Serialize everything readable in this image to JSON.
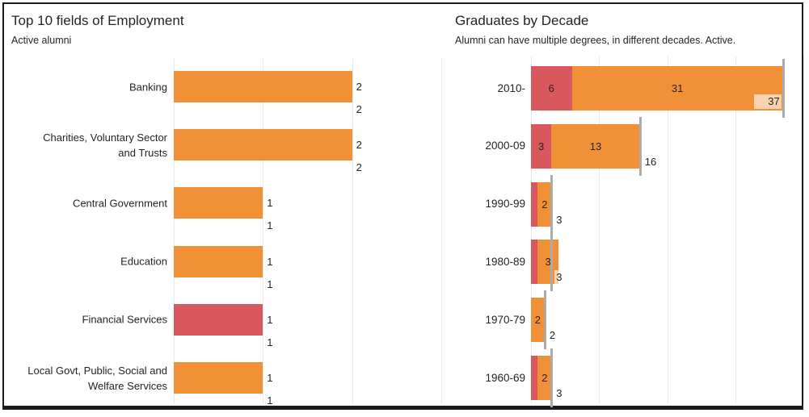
{
  "colors": {
    "orange": "#F09138",
    "red": "#D9585E",
    "total_line": "#ABABAB",
    "gridline": "#E9E9E9",
    "text": "#252423",
    "label_bg": "rgba(255,255,255,0.6)",
    "frame_border": "#1B1B1B"
  },
  "chart_data": [
    {
      "type": "bar",
      "orientation": "horizontal",
      "title": "Top 10 fields of Employment",
      "subtitle": "Active alumni",
      "xlim": [
        0,
        3
      ],
      "gridline_values": [
        0,
        1,
        2,
        3
      ],
      "legend": "none",
      "categories": [
        "Banking",
        "Charities, Voluntary Sector\nand Trusts",
        "Central Government",
        "Education",
        "Financial Services",
        "Local Govt, Public, Social and\nWelfare Services"
      ],
      "values": [
        2,
        2,
        1,
        1,
        1,
        1
      ],
      "totals": [
        2,
        2,
        1,
        1,
        1,
        1
      ],
      "bar_color_keys": [
        "orange",
        "orange",
        "orange",
        "orange",
        "red",
        "orange"
      ]
    },
    {
      "type": "stacked-bar",
      "orientation": "horizontal",
      "title": "Graduates by Decade",
      "subtitle": "Alumni can have multiple degrees, in different decades. Active.",
      "xlim": [
        0,
        40
      ],
      "gridline_values": [
        0,
        10,
        20,
        30,
        40
      ],
      "legend": "none",
      "categories": [
        "2010-",
        "2000-09",
        "1990-99",
        "1980-89",
        "1970-79",
        "1960-69"
      ],
      "series": [
        {
          "name": "red-series",
          "color_key": "red",
          "values": [
            6,
            3,
            1,
            1,
            0,
            1
          ]
        },
        {
          "name": "orange-series",
          "color_key": "orange",
          "values": [
            31,
            13,
            2,
            3,
            2,
            2
          ]
        }
      ],
      "totals": [
        37,
        16,
        3,
        3,
        2,
        3
      ]
    }
  ]
}
